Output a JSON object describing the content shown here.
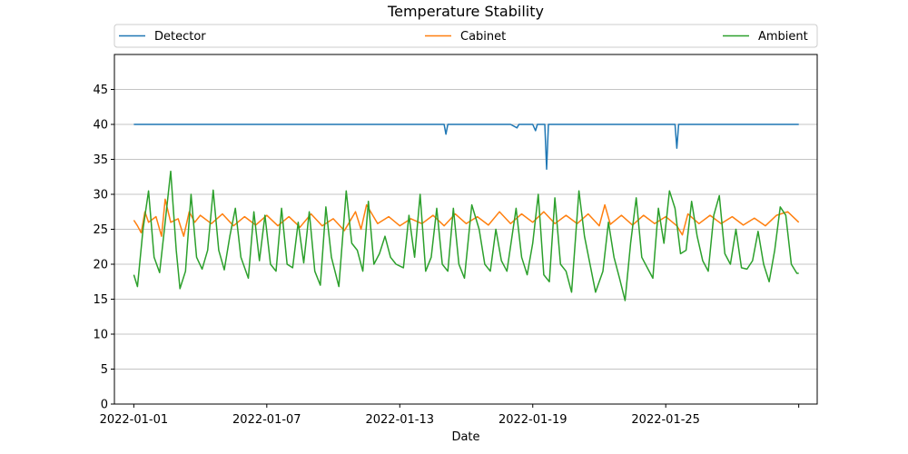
{
  "chart_data": {
    "type": "line",
    "title": "Temperature Stability",
    "xlabel": "Date",
    "ylabel": "",
    "ylim": [
      0,
      50
    ],
    "yticks": [
      0,
      5,
      10,
      15,
      20,
      25,
      30,
      35,
      40,
      45
    ],
    "xlim": [
      "2021-12-31T03:00",
      "2022-01-31T20:00"
    ],
    "xticks": [
      "2022-01-01",
      "2022-01-07",
      "2022-01-13",
      "2022-01-19",
      "2022-01-25",
      "2022-01-31"
    ],
    "xtick_labels": [
      "2022-01-01",
      "2022-01-07",
      "2022-01-13",
      "2022-01-19",
      "2022-01-25",
      ""
    ],
    "grid": "horizontal",
    "legend_position": "top, above plot",
    "series": [
      {
        "name": "Detector",
        "color": "#1f77b4",
        "points": [
          [
            "2022-01-01T00:00",
            40.0
          ],
          [
            "2022-01-02T00:00",
            40.0
          ],
          [
            "2022-01-03T00:00",
            40.0
          ],
          [
            "2022-01-04T00:00",
            40.0
          ],
          [
            "2022-01-05T00:00",
            40.0
          ],
          [
            "2022-01-06T00:00",
            40.0
          ],
          [
            "2022-01-07T00:00",
            40.0
          ],
          [
            "2022-01-08T00:00",
            40.0
          ],
          [
            "2022-01-09T00:00",
            40.0
          ],
          [
            "2022-01-10T00:00",
            40.0
          ],
          [
            "2022-01-11T00:00",
            40.0
          ],
          [
            "2022-01-12T00:00",
            40.0
          ],
          [
            "2022-01-13T00:00",
            40.0
          ],
          [
            "2022-01-14T00:00",
            40.0
          ],
          [
            "2022-01-15T00:00",
            40.0
          ],
          [
            "2022-01-15T02:00",
            38.6
          ],
          [
            "2022-01-15T04:00",
            40.0
          ],
          [
            "2022-01-16T00:00",
            40.0
          ],
          [
            "2022-01-17T00:00",
            40.0
          ],
          [
            "2022-01-18T00:00",
            40.0
          ],
          [
            "2022-01-18T07:00",
            39.5
          ],
          [
            "2022-01-18T09:00",
            40.0
          ],
          [
            "2022-01-19T00:00",
            40.0
          ],
          [
            "2022-01-19T03:00",
            39.1
          ],
          [
            "2022-01-19T05:00",
            40.0
          ],
          [
            "2022-01-19T13:00",
            40.0
          ],
          [
            "2022-01-19T15:00",
            33.6
          ],
          [
            "2022-01-19T17:00",
            40.0
          ],
          [
            "2022-01-20T00:00",
            40.0
          ],
          [
            "2022-01-21T00:00",
            40.0
          ],
          [
            "2022-01-22T00:00",
            40.0
          ],
          [
            "2022-01-23T00:00",
            40.0
          ],
          [
            "2022-01-24T00:00",
            40.0
          ],
          [
            "2022-01-25T00:00",
            40.0
          ],
          [
            "2022-01-25T10:00",
            40.0
          ],
          [
            "2022-01-25T12:00",
            36.6
          ],
          [
            "2022-01-25T14:00",
            40.0
          ],
          [
            "2022-01-26T00:00",
            40.0
          ],
          [
            "2022-01-27T00:00",
            40.0
          ],
          [
            "2022-01-28T00:00",
            40.0
          ],
          [
            "2022-01-29T00:00",
            40.0
          ],
          [
            "2022-01-30T00:00",
            40.0
          ],
          [
            "2022-01-31T00:00",
            40.0
          ]
        ]
      },
      {
        "name": "Cabinet",
        "color": "#ff7f0e",
        "points": [
          [
            "2022-01-01T00:00",
            26.3
          ],
          [
            "2022-01-01T04:00",
            25.5
          ],
          [
            "2022-01-01T08:00",
            24.5
          ],
          [
            "2022-01-01T12:00",
            27.5
          ],
          [
            "2022-01-01T16:00",
            26.0
          ],
          [
            "2022-01-02T00:00",
            26.8
          ],
          [
            "2022-01-02T06:00",
            24.0
          ],
          [
            "2022-01-02T10:00",
            29.3
          ],
          [
            "2022-01-02T16:00",
            26.0
          ],
          [
            "2022-01-03T00:00",
            26.5
          ],
          [
            "2022-01-03T06:00",
            24.0
          ],
          [
            "2022-01-03T12:00",
            27.5
          ],
          [
            "2022-01-03T18:00",
            26.0
          ],
          [
            "2022-01-04T00:00",
            27.0
          ],
          [
            "2022-01-04T12:00",
            25.8
          ],
          [
            "2022-01-05T00:00",
            27.2
          ],
          [
            "2022-01-05T12:00",
            25.5
          ],
          [
            "2022-01-06T00:00",
            26.8
          ],
          [
            "2022-01-06T12:00",
            25.6
          ],
          [
            "2022-01-07T00:00",
            27.0
          ],
          [
            "2022-01-07T12:00",
            25.5
          ],
          [
            "2022-01-08T00:00",
            26.8
          ],
          [
            "2022-01-08T12:00",
            25.3
          ],
          [
            "2022-01-09T00:00",
            27.2
          ],
          [
            "2022-01-09T12:00",
            25.5
          ],
          [
            "2022-01-10T00:00",
            26.5
          ],
          [
            "2022-01-10T12:00",
            24.8
          ],
          [
            "2022-01-11T00:00",
            27.5
          ],
          [
            "2022-01-11T06:00",
            25.0
          ],
          [
            "2022-01-11T12:00",
            28.5
          ],
          [
            "2022-01-12T00:00",
            25.8
          ],
          [
            "2022-01-12T12:00",
            26.8
          ],
          [
            "2022-01-13T00:00",
            25.5
          ],
          [
            "2022-01-13T12:00",
            26.5
          ],
          [
            "2022-01-14T00:00",
            25.8
          ],
          [
            "2022-01-14T12:00",
            27.0
          ],
          [
            "2022-01-15T00:00",
            25.5
          ],
          [
            "2022-01-15T12:00",
            27.2
          ],
          [
            "2022-01-16T00:00",
            25.8
          ],
          [
            "2022-01-16T12:00",
            26.8
          ],
          [
            "2022-01-17T00:00",
            25.6
          ],
          [
            "2022-01-17T12:00",
            27.5
          ],
          [
            "2022-01-18T00:00",
            25.8
          ],
          [
            "2022-01-18T12:00",
            27.2
          ],
          [
            "2022-01-19T00:00",
            26.0
          ],
          [
            "2022-01-19T12:00",
            27.5
          ],
          [
            "2022-01-20T00:00",
            25.8
          ],
          [
            "2022-01-20T12:00",
            27.0
          ],
          [
            "2022-01-21T00:00",
            25.8
          ],
          [
            "2022-01-21T12:00",
            27.2
          ],
          [
            "2022-01-22T00:00",
            25.5
          ],
          [
            "2022-01-22T06:00",
            28.5
          ],
          [
            "2022-01-22T12:00",
            25.7
          ],
          [
            "2022-01-23T00:00",
            27.0
          ],
          [
            "2022-01-23T12:00",
            25.6
          ],
          [
            "2022-01-24T00:00",
            27.0
          ],
          [
            "2022-01-24T12:00",
            25.8
          ],
          [
            "2022-01-25T00:00",
            26.8
          ],
          [
            "2022-01-25T12:00",
            25.5
          ],
          [
            "2022-01-25T18:00",
            24.2
          ],
          [
            "2022-01-26T00:00",
            27.2
          ],
          [
            "2022-01-26T12:00",
            25.8
          ],
          [
            "2022-01-27T00:00",
            27.0
          ],
          [
            "2022-01-27T12:00",
            25.8
          ],
          [
            "2022-01-28T00:00",
            26.8
          ],
          [
            "2022-01-28T12:00",
            25.6
          ],
          [
            "2022-01-29T00:00",
            26.6
          ],
          [
            "2022-01-29T12:00",
            25.5
          ],
          [
            "2022-01-30T00:00",
            27.0
          ],
          [
            "2022-01-30T12:00",
            27.5
          ],
          [
            "2022-01-31T00:00",
            26.0
          ]
        ]
      },
      {
        "name": "Ambient",
        "color": "#2ca02c",
        "points": [
          [
            "2022-01-01T00:00",
            18.5
          ],
          [
            "2022-01-01T04:00",
            16.8
          ],
          [
            "2022-01-01T10:00",
            25.0
          ],
          [
            "2022-01-01T16:00",
            30.5
          ],
          [
            "2022-01-01T22:00",
            21.0
          ],
          [
            "2022-01-02T04:00",
            18.8
          ],
          [
            "2022-01-02T10:00",
            26.0
          ],
          [
            "2022-01-02T16:00",
            33.3
          ],
          [
            "2022-01-02T22:00",
            22.0
          ],
          [
            "2022-01-03T02:00",
            16.5
          ],
          [
            "2022-01-03T08:00",
            19.0
          ],
          [
            "2022-01-03T14:00",
            30.0
          ],
          [
            "2022-01-03T20:00",
            21.0
          ],
          [
            "2022-01-04T02:00",
            19.3
          ],
          [
            "2022-01-04T08:00",
            22.0
          ],
          [
            "2022-01-04T14:00",
            30.6
          ],
          [
            "2022-01-04T20:00",
            22.0
          ],
          [
            "2022-01-05T02:00",
            19.2
          ],
          [
            "2022-01-05T08:00",
            24.0
          ],
          [
            "2022-01-05T14:00",
            28.0
          ],
          [
            "2022-01-05T20:00",
            21.0
          ],
          [
            "2022-01-06T04:00",
            18.0
          ],
          [
            "2022-01-06T10:00",
            27.5
          ],
          [
            "2022-01-06T16:00",
            20.5
          ],
          [
            "2022-01-06T22:00",
            27.0
          ],
          [
            "2022-01-07T04:00",
            20.0
          ],
          [
            "2022-01-07T10:00",
            19.0
          ],
          [
            "2022-01-07T16:00",
            28.0
          ],
          [
            "2022-01-07T22:00",
            20.0
          ],
          [
            "2022-01-08T04:00",
            19.5
          ],
          [
            "2022-01-08T10:00",
            26.0
          ],
          [
            "2022-01-08T16:00",
            20.2
          ],
          [
            "2022-01-08T22:00",
            27.5
          ],
          [
            "2022-01-09T04:00",
            19.0
          ],
          [
            "2022-01-09T10:00",
            17.0
          ],
          [
            "2022-01-09T16:00",
            28.2
          ],
          [
            "2022-01-09T22:00",
            21.0
          ],
          [
            "2022-01-10T06:00",
            16.8
          ],
          [
            "2022-01-10T14:00",
            30.5
          ],
          [
            "2022-01-10T20:00",
            23.0
          ],
          [
            "2022-01-11T02:00",
            22.0
          ],
          [
            "2022-01-11T08:00",
            19.0
          ],
          [
            "2022-01-11T14:00",
            29.0
          ],
          [
            "2022-01-11T20:00",
            20.0
          ],
          [
            "2022-01-12T02:00",
            21.5
          ],
          [
            "2022-01-12T08:00",
            24.0
          ],
          [
            "2022-01-12T14:00",
            21.0
          ],
          [
            "2022-01-12T20:00",
            20.0
          ],
          [
            "2022-01-13T04:00",
            19.5
          ],
          [
            "2022-01-13T10:00",
            27.0
          ],
          [
            "2022-01-13T16:00",
            21.0
          ],
          [
            "2022-01-13T22:00",
            30.0
          ],
          [
            "2022-01-14T04:00",
            19.0
          ],
          [
            "2022-01-14T10:00",
            21.0
          ],
          [
            "2022-01-14T16:00",
            28.0
          ],
          [
            "2022-01-14T22:00",
            20.0
          ],
          [
            "2022-01-15T04:00",
            19.0
          ],
          [
            "2022-01-15T10:00",
            28.0
          ],
          [
            "2022-01-15T16:00",
            20.0
          ],
          [
            "2022-01-15T22:00",
            18.0
          ],
          [
            "2022-01-16T06:00",
            28.5
          ],
          [
            "2022-01-16T14:00",
            25.0
          ],
          [
            "2022-01-16T20:00",
            20.0
          ],
          [
            "2022-01-17T02:00",
            19.0
          ],
          [
            "2022-01-17T08:00",
            25.0
          ],
          [
            "2022-01-17T14:00",
            20.5
          ],
          [
            "2022-01-17T20:00",
            19.0
          ],
          [
            "2022-01-18T06:00",
            28.0
          ],
          [
            "2022-01-18T12:00",
            21.0
          ],
          [
            "2022-01-18T18:00",
            18.5
          ],
          [
            "2022-01-19T00:00",
            23.0
          ],
          [
            "2022-01-19T06:00",
            30.0
          ],
          [
            "2022-01-19T12:00",
            18.5
          ],
          [
            "2022-01-19T18:00",
            17.5
          ],
          [
            "2022-01-20T00:00",
            29.5
          ],
          [
            "2022-01-20T06:00",
            20.0
          ],
          [
            "2022-01-20T12:00",
            19.0
          ],
          [
            "2022-01-20T18:00",
            16.0
          ],
          [
            "2022-01-21T02:00",
            30.5
          ],
          [
            "2022-01-21T08:00",
            24.0
          ],
          [
            "2022-01-21T14:00",
            20.0
          ],
          [
            "2022-01-21T20:00",
            16.0
          ],
          [
            "2022-01-22T04:00",
            19.0
          ],
          [
            "2022-01-22T10:00",
            26.0
          ],
          [
            "2022-01-22T16:00",
            21.0
          ],
          [
            "2022-01-22T22:00",
            18.0
          ],
          [
            "2022-01-23T04:00",
            14.8
          ],
          [
            "2022-01-23T10:00",
            23.0
          ],
          [
            "2022-01-23T16:00",
            29.5
          ],
          [
            "2022-01-23T22:00",
            21.0
          ],
          [
            "2022-01-24T04:00",
            19.5
          ],
          [
            "2022-01-24T10:00",
            18.0
          ],
          [
            "2022-01-24T16:00",
            28.0
          ],
          [
            "2022-01-24T22:00",
            23.0
          ],
          [
            "2022-01-25T04:00",
            30.5
          ],
          [
            "2022-01-25T10:00",
            28.0
          ],
          [
            "2022-01-25T16:00",
            21.5
          ],
          [
            "2022-01-25T22:00",
            22.0
          ],
          [
            "2022-01-26T04:00",
            29.0
          ],
          [
            "2022-01-26T10:00",
            24.0
          ],
          [
            "2022-01-26T16:00",
            20.5
          ],
          [
            "2022-01-26T22:00",
            19.0
          ],
          [
            "2022-01-27T04:00",
            27.0
          ],
          [
            "2022-01-27T10:00",
            29.8
          ],
          [
            "2022-01-27T16:00",
            21.5
          ],
          [
            "2022-01-27T22:00",
            20.0
          ],
          [
            "2022-01-28T04:00",
            25.0
          ],
          [
            "2022-01-28T10:00",
            19.5
          ],
          [
            "2022-01-28T16:00",
            19.3
          ],
          [
            "2022-01-28T22:00",
            20.5
          ],
          [
            "2022-01-29T04:00",
            24.7
          ],
          [
            "2022-01-29T10:00",
            20.0
          ],
          [
            "2022-01-29T16:00",
            17.5
          ],
          [
            "2022-01-29T22:00",
            22.0
          ],
          [
            "2022-01-30T04:00",
            28.2
          ],
          [
            "2022-01-30T10:00",
            27.0
          ],
          [
            "2022-01-30T16:00",
            20.0
          ],
          [
            "2022-01-30T22:00",
            18.7
          ],
          [
            "2022-01-31T00:00",
            18.7
          ]
        ]
      }
    ]
  }
}
